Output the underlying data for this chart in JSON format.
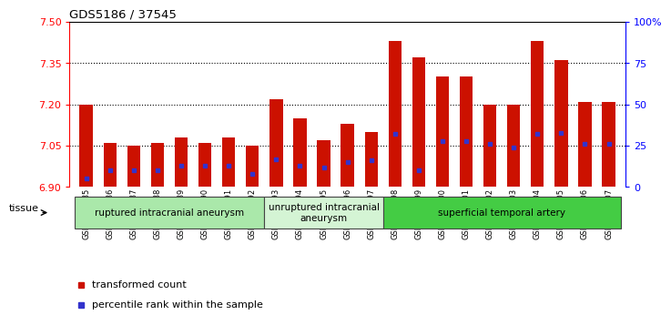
{
  "title": "GDS5186 / 37545",
  "samples": [
    "GSM1306885",
    "GSM1306886",
    "GSM1306887",
    "GSM1306888",
    "GSM1306889",
    "GSM1306890",
    "GSM1306891",
    "GSM1306892",
    "GSM1306893",
    "GSM1306894",
    "GSM1306895",
    "GSM1306896",
    "GSM1306897",
    "GSM1306898",
    "GSM1306899",
    "GSM1306900",
    "GSM1306901",
    "GSM1306902",
    "GSM1306903",
    "GSM1306904",
    "GSM1306905",
    "GSM1306906",
    "GSM1306907"
  ],
  "transformed_count": [
    7.2,
    7.06,
    7.05,
    7.06,
    7.08,
    7.06,
    7.08,
    7.05,
    7.22,
    7.15,
    7.07,
    7.13,
    7.1,
    7.43,
    7.37,
    7.3,
    7.3,
    7.2,
    7.2,
    7.43,
    7.36,
    7.21,
    7.21
  ],
  "percentile_rank": [
    5,
    10,
    10,
    10,
    13,
    13,
    13,
    8,
    17,
    13,
    12,
    15,
    16,
    32,
    10,
    28,
    28,
    26,
    24,
    32,
    33,
    26,
    26
  ],
  "groups": [
    {
      "label": "ruptured intracranial aneurysm",
      "start": 0,
      "end": 8,
      "color": "#aae8aa"
    },
    {
      "label": "unruptured intracranial\naneurysm",
      "start": 8,
      "end": 13,
      "color": "#d4f4d4"
    },
    {
      "label": "superficial temporal artery",
      "start": 13,
      "end": 23,
      "color": "#44cc44"
    }
  ],
  "y_min": 6.9,
  "y_max": 7.5,
  "y_ticks": [
    6.9,
    7.05,
    7.2,
    7.35,
    7.5
  ],
  "y_right_ticks": [
    0,
    25,
    50,
    75,
    100
  ],
  "bar_color": "#cc1100",
  "dot_color": "#3333cc",
  "bar_width": 0.55,
  "legend_items": [
    {
      "label": "transformed count",
      "color": "#cc1100"
    },
    {
      "label": "percentile rank within the sample",
      "color": "#3333cc"
    }
  ],
  "tissue_label": "tissue",
  "background_color": "#ffffff"
}
